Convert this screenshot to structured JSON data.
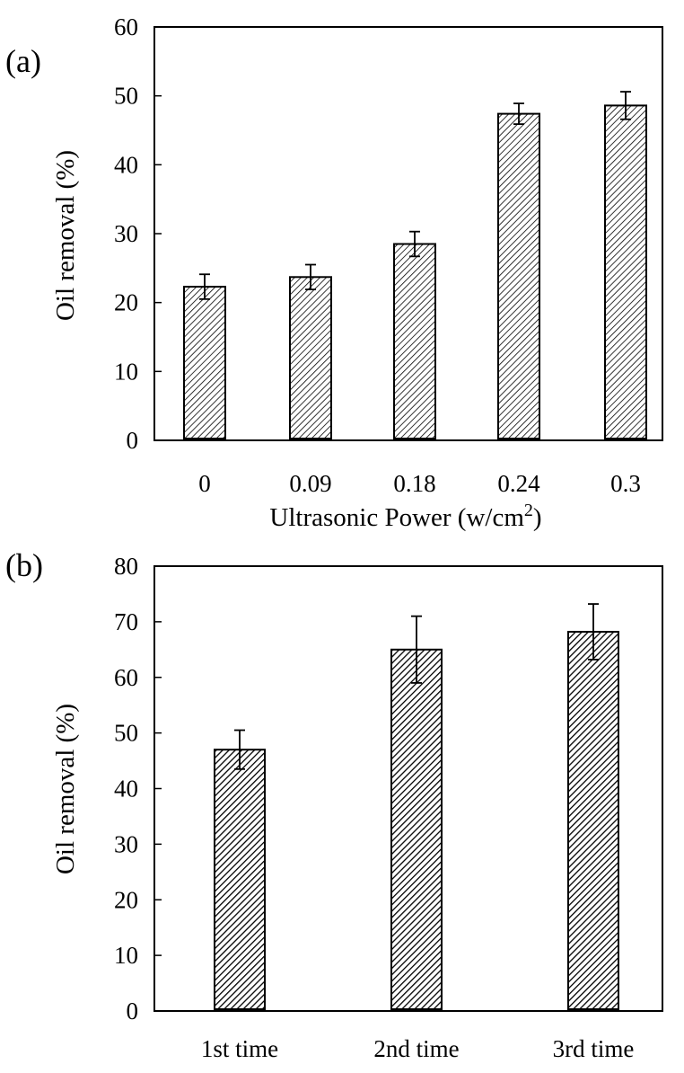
{
  "chart_data": [
    {
      "type": "bar",
      "panel_label": "(a)",
      "title": "",
      "xlabel": "Ultrasonic Power (w/cm",
      "xlabel_superscript": "2",
      "xlabel_suffix": ")",
      "ylabel": "Oil removal  (%)",
      "categories": [
        "0",
        "0.09",
        "0.18",
        "0.24",
        "0.3"
      ],
      "values": [
        22.3,
        23.7,
        28.5,
        47.4,
        48.6
      ],
      "errors": [
        1.8,
        1.8,
        1.8,
        1.5,
        2.0
      ],
      "ylim": [
        0,
        60
      ],
      "yticks": [
        0,
        10,
        20,
        30,
        40,
        50,
        60
      ],
      "grid": false,
      "bar_pattern": "diagonal-hatch",
      "bar_color": "#000000"
    },
    {
      "type": "bar",
      "panel_label": "(b)",
      "title": "",
      "xlabel": "",
      "ylabel": "Oil removal  (%)",
      "categories": [
        "1st time",
        "2nd time",
        "3rd time"
      ],
      "values": [
        47.0,
        65.0,
        68.2
      ],
      "errors": [
        3.5,
        6.0,
        5.0
      ],
      "ylim": [
        0,
        80
      ],
      "yticks": [
        0,
        10,
        20,
        30,
        40,
        50,
        60,
        70,
        80
      ],
      "grid": false,
      "bar_pattern": "dense-diagonal-hatch",
      "bar_color": "#000000"
    }
  ]
}
